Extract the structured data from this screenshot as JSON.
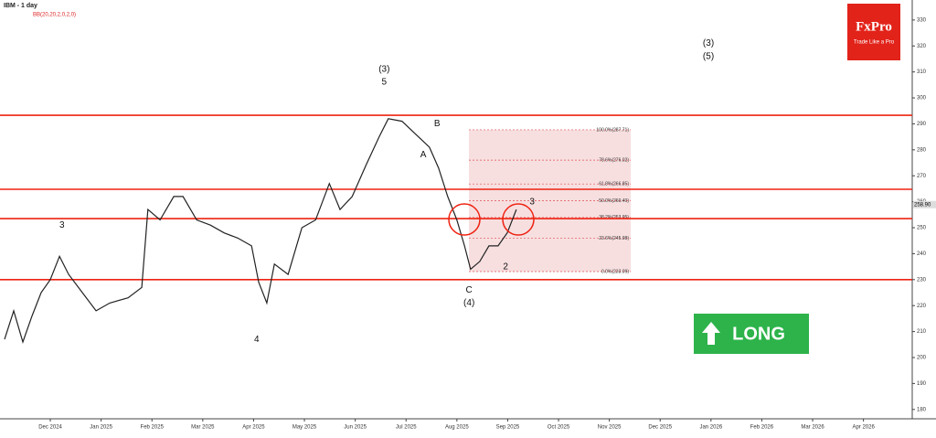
{
  "chart_data": {
    "type": "line",
    "title": "IBM - 1 day",
    "indicator": "BB(20,20,2,0,2,0)",
    "brand": "FxPro",
    "tagline": "Trade Like a Pro",
    "signal": "LONG",
    "color": "#222222",
    "x": [
      -0.9,
      -0.72,
      -0.54,
      -0.36,
      -0.18,
      0,
      0.18,
      0.36,
      0.63,
      0.9,
      1.17,
      1.53,
      1.8,
      1.92,
      2.16,
      2.43,
      2.61,
      2.88,
      3.15,
      3.42,
      3.69,
      3.96,
      4.1,
      4.26,
      4.41,
      4.68,
      4.95,
      5.22,
      5.49,
      5.7,
      5.94,
      6.21,
      6.47,
      6.65,
      6.92,
      7.19,
      7.46,
      7.64,
      7.82,
      8.0,
      8.15,
      8.27,
      8.45,
      8.63,
      8.81,
      8.99,
      9.17
    ],
    "values": [
      207,
      218,
      206,
      216,
      225,
      230,
      239,
      232,
      225,
      218,
      221,
      223,
      227,
      257,
      253,
      262,
      262,
      253,
      251,
      248,
      246,
      243,
      229,
      221,
      236,
      232,
      250,
      253,
      267,
      257,
      262,
      274,
      285,
      292,
      291,
      286,
      281,
      273,
      262,
      253,
      243,
      234,
      237,
      243,
      243,
      248,
      257
    ],
    "xlim": [
      -0.99,
      16.96
    ],
    "xticks": [
      {
        "value": 0,
        "label": "Dec 2024"
      },
      {
        "value": 1,
        "label": "Jan 2025"
      },
      {
        "value": 2,
        "label": "Feb 2025"
      },
      {
        "value": 3,
        "label": "Mar 2025"
      },
      {
        "value": 4,
        "label": "Apr 2025"
      },
      {
        "value": 5,
        "label": "May 2025"
      },
      {
        "value": 6,
        "label": "Jun 2025"
      },
      {
        "value": 7,
        "label": "Jul 2025"
      },
      {
        "value": 8,
        "label": "Aug 2025"
      },
      {
        "value": 9,
        "label": "Sep 2025"
      },
      {
        "value": 10,
        "label": "Oct 2025"
      },
      {
        "value": 11,
        "label": "Nov 2025"
      },
      {
        "value": 12,
        "label": "Dec 2025"
      },
      {
        "value": 13,
        "label": "Jan 2026"
      },
      {
        "value": 14,
        "label": "Feb 2026"
      },
      {
        "value": 15,
        "label": "Mar 2026"
      },
      {
        "value": 16,
        "label": "Apr 2026"
      }
    ],
    "ylim": [
      176.4,
      337.7
    ],
    "yticks": [
      180,
      190,
      200,
      210,
      220,
      230,
      240,
      250,
      260,
      270,
      280,
      290,
      300,
      310,
      320,
      330
    ],
    "last_price": {
      "value": 258.9,
      "label": "258.90"
    },
    "levels": [
      293.3,
      264.8,
      253.5,
      230
    ],
    "fib_levels": [
      {
        "value": 287.71,
        "label": "100.0%(287.71)"
      },
      {
        "value": 276.02,
        "label": "78.6%(276.02)"
      },
      {
        "value": 266.85,
        "label": "61.8%(266.85)"
      },
      {
        "value": 260.4,
        "label": "50.0%(260.40)"
      },
      {
        "value": 253.95,
        "label": "38.2%(253.95)"
      },
      {
        "value": 245.98,
        "label": "23.6%(245.98)"
      },
      {
        "value": 233.09,
        "label": "0.0%(233.09)"
      }
    ],
    "annotations": [
      {
        "text": "(3)",
        "x": 6.57,
        "y": 311
      },
      {
        "text": "5",
        "x": 6.57,
        "y": 306
      },
      {
        "text": "B",
        "x": 7.61,
        "y": 290
      },
      {
        "text": "A",
        "x": 7.34,
        "y": 278
      },
      {
        "text": "C",
        "x": 8.24,
        "y": 226
      },
      {
        "text": "(4)",
        "x": 8.24,
        "y": 221
      },
      {
        "text": "2",
        "x": 8.96,
        "y": 235
      },
      {
        "text": "3",
        "x": 9.48,
        "y": 260
      },
      {
        "text": "3",
        "x": 0.23,
        "y": 251
      },
      {
        "text": "4",
        "x": 4.06,
        "y": 207
      },
      {
        "text": "(3)",
        "x": 12.95,
        "y": 321
      },
      {
        "text": "(5)",
        "x": 12.95,
        "y": 316
      }
    ]
  }
}
